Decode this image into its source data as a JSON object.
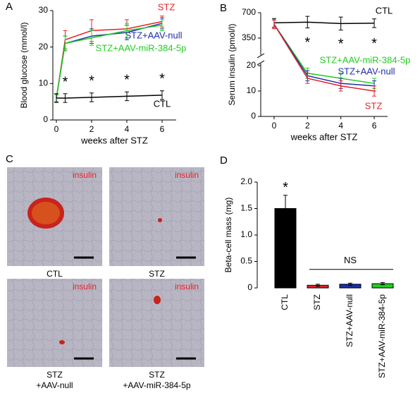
{
  "chart_data": [
    {
      "panel": "A",
      "type": "line",
      "xlabel": "weeks after STZ",
      "ylabel": "Blood glucose (mmol/l)",
      "x": [
        0,
        0.5,
        2,
        4,
        6
      ],
      "xlim": [
        -0.2,
        6.8
      ],
      "xticks": [
        0,
        2,
        4,
        6
      ],
      "ylim": [
        0,
        30
      ],
      "yticks": [
        0,
        10,
        20,
        30
      ],
      "series": [
        {
          "name": "STZ",
          "color": "#e8202a",
          "values": [
            6,
            22,
            24.5,
            25,
            27
          ],
          "errors": [
            1,
            2.5,
            3,
            2.5,
            1.5
          ]
        },
        {
          "name": "STZ+AAV-null",
          "color": "#1c2fa8",
          "values": [
            6,
            21,
            23,
            24,
            26.5
          ],
          "errors": [
            1,
            2,
            2,
            2,
            1.5
          ]
        },
        {
          "name": "STZ+AAV-miR-384-5p",
          "color": "#22cc22",
          "values": [
            6,
            21,
            22.5,
            24.5,
            26
          ],
          "errors": [
            1,
            2,
            2,
            2,
            1.5
          ]
        },
        {
          "name": "CTL",
          "color": "#000000",
          "values": [
            6,
            6,
            6.2,
            6.5,
            6.8
          ],
          "errors": [
            1.2,
            1.2,
            1.2,
            1.2,
            1.2
          ]
        }
      ],
      "significance": {
        "text": "*",
        "x": [
          0.5,
          2,
          4,
          6
        ]
      }
    },
    {
      "panel": "B",
      "type": "line",
      "xlabel": "weeks after STZ",
      "ylabel": "Serum insulin (pmol/l)",
      "x": [
        0,
        2,
        4,
        6
      ],
      "xlim": [
        -0.8,
        6.8
      ],
      "xticks": [
        0,
        2,
        4,
        6
      ],
      "ylim": [
        0,
        700
      ],
      "ybreak": [
        20,
        175
      ],
      "yticks": [
        0,
        10,
        20,
        350,
        700
      ],
      "series": [
        {
          "name": "CTL",
          "color": "#000000",
          "values": [
            560,
            570,
            550,
            555
          ],
          "errors": [
            60,
            80,
            90,
            60
          ]
        },
        {
          "name": "STZ+AAV-miR-384-5p",
          "color": "#22cc22",
          "values": [
            540,
            17,
            15,
            13
          ],
          "errors": [
            60,
            2,
            2,
            2
          ]
        },
        {
          "name": "STZ+AAV-null",
          "color": "#1c2fa8",
          "values": [
            540,
            16,
            13,
            12
          ],
          "errors": [
            60,
            2,
            2,
            2
          ]
        },
        {
          "name": "STZ",
          "color": "#e8202a",
          "values": [
            540,
            15,
            12,
            10
          ],
          "errors": [
            60,
            2,
            2,
            2
          ]
        }
      ],
      "significance": {
        "text": "*",
        "x": [
          2,
          4,
          6
        ]
      }
    },
    {
      "panel": "D",
      "type": "bar",
      "ylabel": "Beta-cell mass (mg)",
      "categories": [
        "CTL",
        "STZ",
        "STZ+AAV-null",
        "STZ+AAV-miR-384-5p"
      ],
      "values": [
        1.5,
        0.05,
        0.07,
        0.08
      ],
      "errors": [
        0.25,
        0.02,
        0.02,
        0.02
      ],
      "colors": [
        "#000000",
        "#e8202a",
        "#1c2fa8",
        "#22cc22"
      ],
      "ylim": [
        0,
        2
      ],
      "yticks": [
        0,
        0.5,
        {
          "value": 1,
          "label": "1.0"
        },
        1.5,
        {
          "value": 2,
          "label": "2.0"
        }
      ],
      "significance": {
        "text": "*",
        "category": 0
      },
      "ns": {
        "text": "NS",
        "categories": [
          1,
          3
        ]
      }
    }
  ],
  "histology": {
    "panel": "C",
    "images": [
      {
        "stain": "insulin",
        "caption": [
          "CTL"
        ]
      },
      {
        "stain": "insulin",
        "caption": [
          "STZ"
        ]
      },
      {
        "stain": "insulin",
        "caption": [
          "STZ",
          "+AAV-null"
        ]
      },
      {
        "stain": "insulin",
        "caption": [
          "STZ",
          "+AAV-miR-384-5p"
        ]
      }
    ]
  }
}
